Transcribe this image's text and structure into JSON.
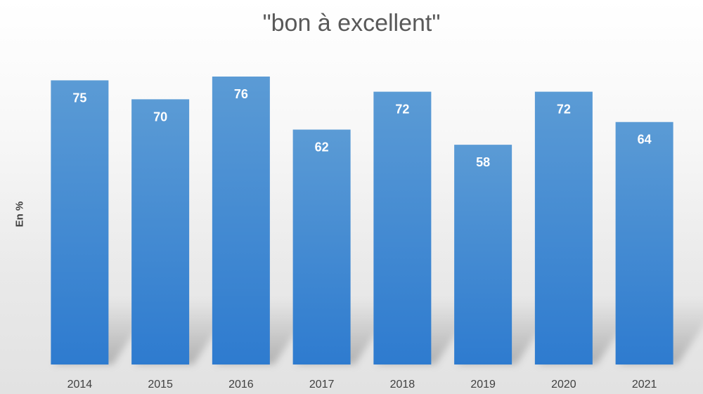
{
  "chart_data": {
    "type": "bar",
    "title": "\"bon à excellent\"",
    "ylabel": "En %",
    "xlabel": "",
    "categories": [
      "2014",
      "2015",
      "2016",
      "2017",
      "2018",
      "2019",
      "2020",
      "2021"
    ],
    "values": [
      75,
      70,
      76,
      62,
      72,
      58,
      72,
      64
    ],
    "ylim": [
      0,
      76
    ],
    "grid": false,
    "legend": "none",
    "data_labels": true,
    "colors": {
      "bar_top": "#5b9bd5",
      "bar_bottom": "#2e7bcf",
      "label": "#ffffff",
      "axis_text": "#404040",
      "title": "#595959"
    }
  }
}
